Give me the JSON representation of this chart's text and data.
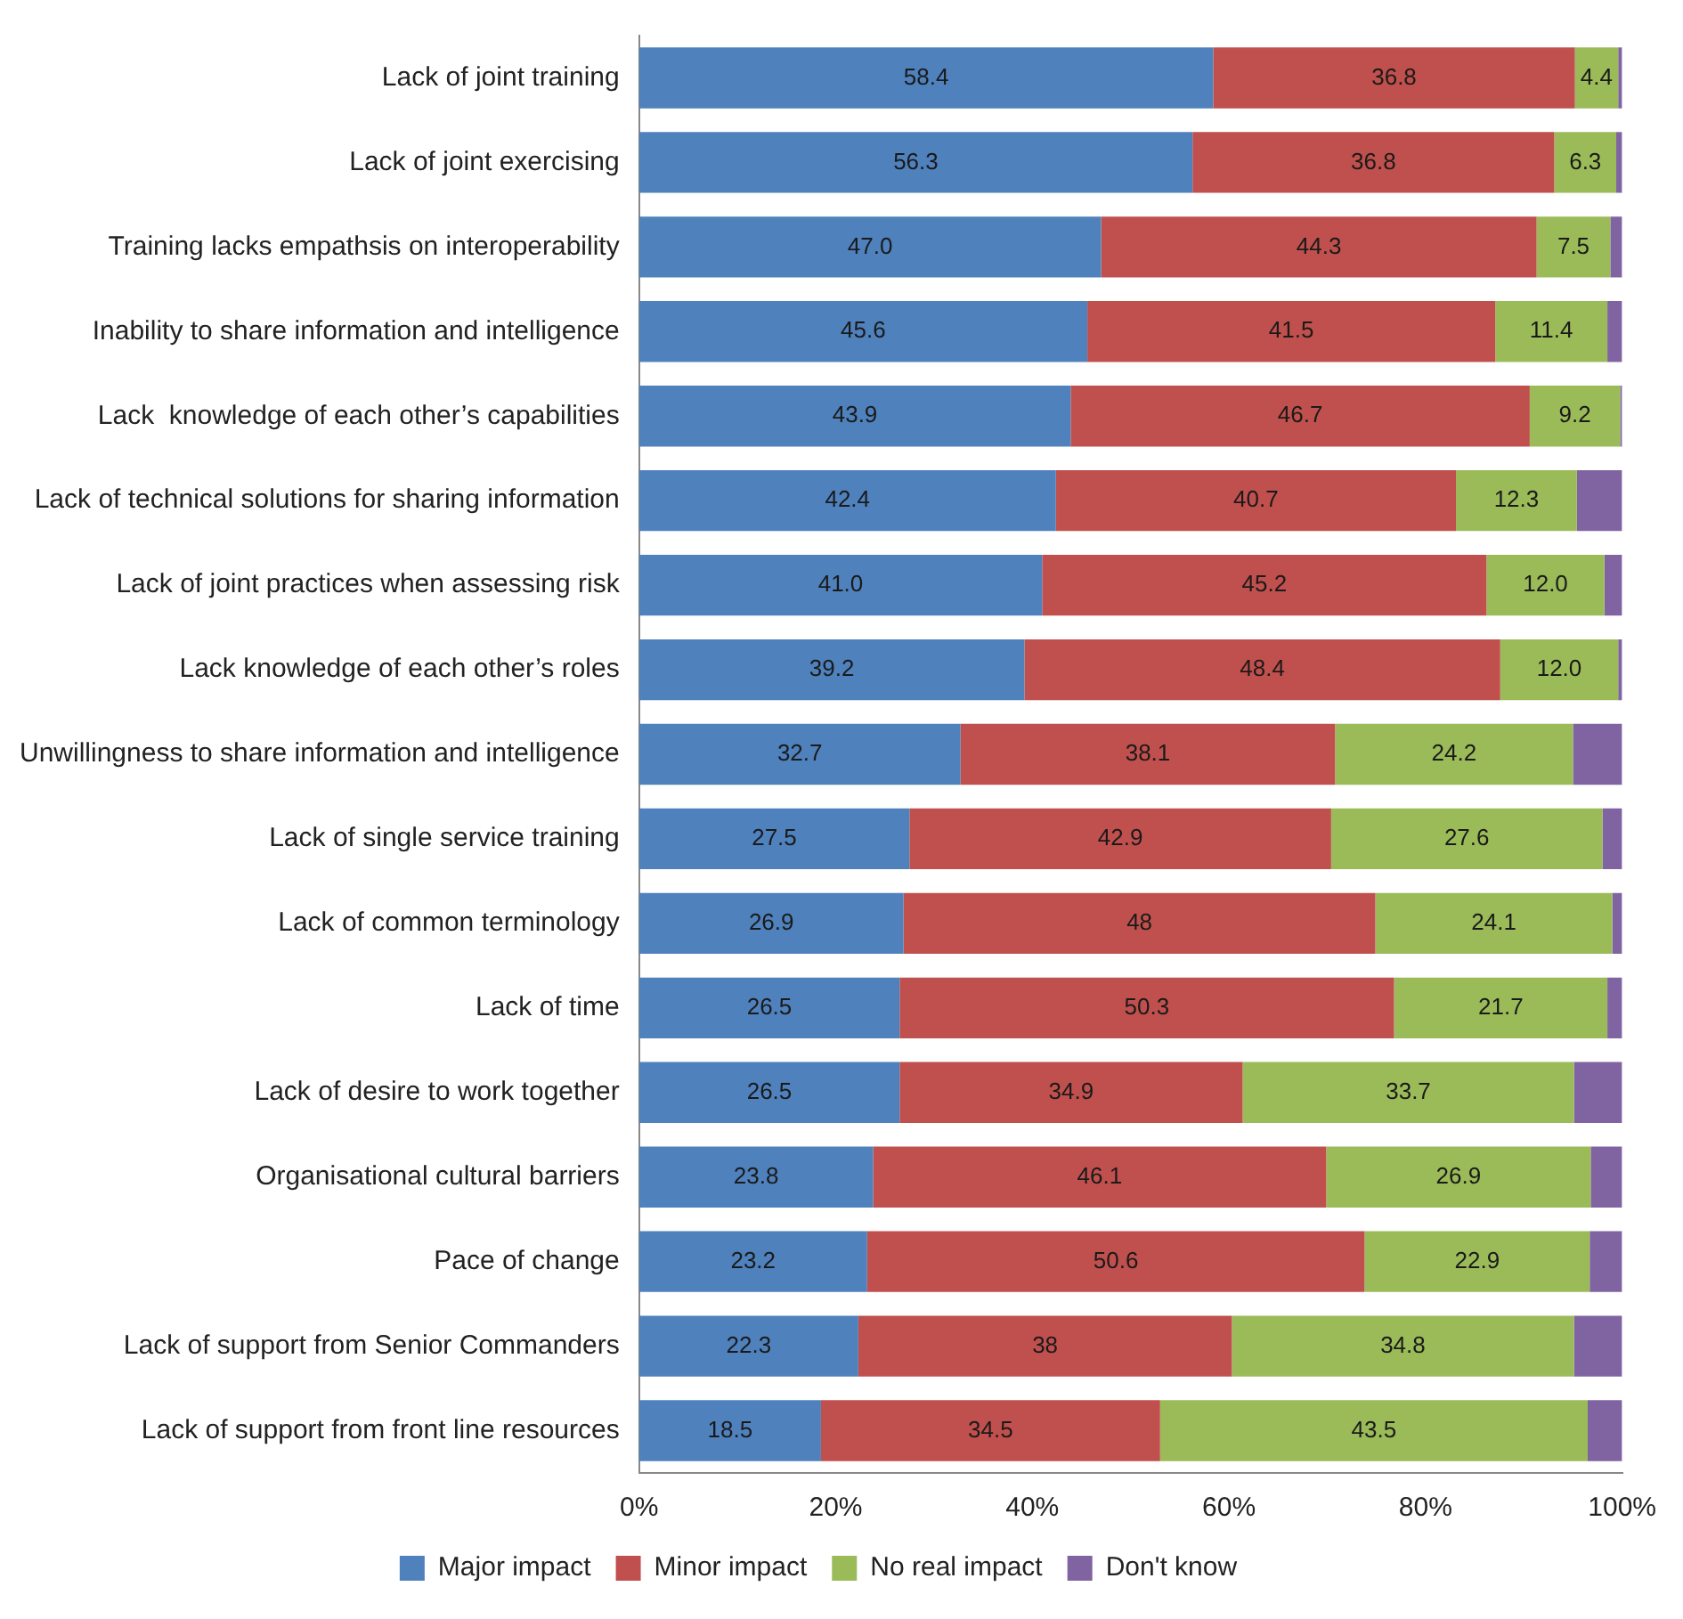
{
  "chart_data": {
    "type": "bar",
    "orientation": "horizontal",
    "stacked": true,
    "grid": false,
    "legend": "bottom",
    "categories": [
      "Lack of joint training",
      "Lack of joint exercising",
      "Training lacks empathsis on interoperability",
      "Inability to share information and intelligence",
      "Lack  knowledge of each other’s capabilities",
      "Lack of technical solutions for sharing information",
      "Lack of joint practices when assessing risk",
      "Lack knowledge of each other’s roles",
      "Unwillingness to share information and intelligence",
      "Lack of single service training",
      "Lack of common terminology",
      "Lack of time",
      "Lack of desire to work together",
      "Organisational cultural barriers",
      "Pace of change",
      "Lack of support from Senior Commanders",
      "Lack of support from front line resources"
    ],
    "xlim": [
      0,
      100
    ],
    "xticks": [
      {
        "value": 0,
        "label": "0%"
      },
      {
        "value": 20,
        "label": "20%"
      },
      {
        "value": 40,
        "label": "40%"
      },
      {
        "value": 60,
        "label": "60%"
      },
      {
        "value": 80,
        "label": "80%"
      },
      {
        "value": 100,
        "label": "100%"
      }
    ],
    "series": [
      {
        "name": "Major impact",
        "color": "#4f81bd",
        "values": [
          58.4,
          56.3,
          47.0,
          45.6,
          43.9,
          42.4,
          41.0,
          39.2,
          32.7,
          27.5,
          26.9,
          26.5,
          26.5,
          23.8,
          23.2,
          22.3,
          18.5
        ],
        "value_labels": [
          "58.4",
          "56.3",
          "47.0",
          "45.6",
          "43.9",
          "42.4",
          "41.0",
          "39.2",
          "32.7",
          "27.5",
          "26.9",
          "26.5",
          "26.5",
          "23.8",
          "23.2",
          "22.3",
          "18.5"
        ]
      },
      {
        "name": "Minor impact",
        "color": "#c0504d",
        "values": [
          36.8,
          36.8,
          44.3,
          41.5,
          46.7,
          40.7,
          45.2,
          48.4,
          38.1,
          42.9,
          48,
          50.3,
          34.9,
          46.1,
          50.6,
          38,
          34.5
        ],
        "value_labels": [
          "36.8",
          "36.8",
          "44.3",
          "41.5",
          "46.7",
          "40.7",
          "45.2",
          "48.4",
          "38.1",
          "42.9",
          "48",
          "50.3",
          "34.9",
          "46.1",
          "50.6",
          "38",
          "34.5"
        ]
      },
      {
        "name": "No real impact",
        "color": "#9bbb59",
        "values": [
          4.4,
          6.3,
          7.5,
          11.4,
          9.2,
          12.3,
          12.0,
          12.0,
          24.2,
          27.6,
          24.1,
          21.7,
          33.7,
          26.9,
          22.9,
          34.8,
          43.5
        ],
        "value_labels": [
          "4.4",
          "6.3",
          "7.5",
          "11.4",
          "9.2",
          "12.3",
          "12.0",
          "12.0",
          "24.2",
          "27.6",
          "24.1",
          "21.7",
          "33.7",
          "26.9",
          "22.9",
          "34.8",
          "43.5"
        ]
      },
      {
        "name": "Don't know",
        "color": "#8064a2",
        "values": [
          0.4,
          0.6,
          1.2,
          1.5,
          0.2,
          4.6,
          1.8,
          0.4,
          5.0,
          2.0,
          1.0,
          1.5,
          4.9,
          3.2,
          3.3,
          4.9,
          3.5
        ]
      }
    ]
  }
}
